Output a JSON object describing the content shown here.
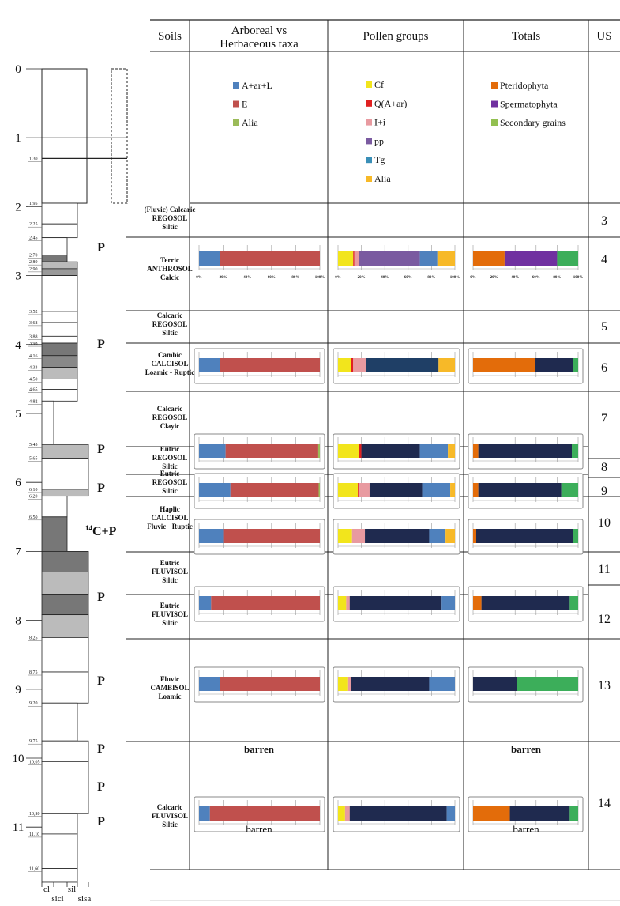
{
  "headers": {
    "soils": "Soils",
    "arboreal": [
      "Arboreal vs",
      "Herbaceous taxa"
    ],
    "pollen": "Pollen groups",
    "totals": "Totals",
    "us": "US"
  },
  "legends": {
    "arboreal": [
      {
        "label": "A+ar+L",
        "color": "#4f81bd"
      },
      {
        "label": "E",
        "color": "#c0504d"
      },
      {
        "label": "Alia",
        "color": "#9bbb59"
      }
    ],
    "pollen": [
      {
        "label": "Cf",
        "color": "#f2e51c"
      },
      {
        "label": "Q(A+ar)",
        "color": "#e02020"
      },
      {
        "label": "I+i",
        "color": "#e89aa0"
      },
      {
        "label": "pp",
        "color": "#7a5aa0"
      },
      {
        "label": "Tg",
        "color": "#3a8fb7"
      },
      {
        "label": "Alia",
        "color": "#f7b928"
      }
    ],
    "totals": [
      {
        "label": "Pteridophyta",
        "color": "#e36c0a"
      },
      {
        "label": "Spermatophyta",
        "color": "#7030a0"
      },
      {
        "label": "Secondary grains",
        "color": "#92c050"
      }
    ]
  },
  "depth_axis": {
    "major": [
      "0",
      "1",
      "2",
      "3",
      "4",
      "5",
      "6",
      "7",
      "8",
      "9",
      "10",
      "11"
    ],
    "minor": [
      "1,30",
      "1,95",
      "2,25",
      "2,45",
      "2,70",
      "2,80",
      "2,90",
      "3,52",
      "3,68",
      "3,88",
      "3,98",
      "4,16",
      "4,33",
      "4,50",
      "4,65",
      "4,82",
      "5,45",
      "5,65",
      "6,10",
      "6,20",
      "6,50",
      "8,25",
      "8,75",
      "9,20",
      "9,75",
      "10,05",
      "10,80",
      "11,10",
      "11,60"
    ],
    "texture": [
      "cl",
      "sicl",
      "sil",
      "sisa"
    ]
  },
  "sampling_marks": [
    "P",
    "P",
    "P",
    "P",
    "14C+P",
    "P",
    "P",
    "P",
    "P",
    "P"
  ],
  "soil_units": [
    {
      "us": "3",
      "soil": [
        "(Fluvic) Calcaric",
        "REGOSOL",
        "Siltic"
      ]
    },
    {
      "us": "4",
      "soil": [
        "Terric",
        "ANTHROSOL",
        "Calcic"
      ]
    },
    {
      "us": "5",
      "soil": [
        "Calcaric",
        "REGOSOL",
        "Siltic"
      ]
    },
    {
      "us": "6",
      "soil": [
        "Cambic",
        "CALCISOL",
        "Loamic - Ruptic"
      ]
    },
    {
      "us": "7",
      "soil": [
        "Calcaric",
        "REGOSOL",
        "Clayic"
      ]
    },
    {
      "us": "8",
      "soil": [
        "Eutric",
        "REGOSOL",
        "Siltic"
      ]
    },
    {
      "us": "9",
      "soil": [
        "Eutric",
        "REGOSOL",
        "Siltic"
      ]
    },
    {
      "us": "10",
      "soil": [
        "Haplic",
        "CALCISOL",
        "Fluvic - Ruptic"
      ]
    },
    {
      "us": "11",
      "soil": [
        "Eutric",
        "FLUVISOL",
        "Siltic"
      ]
    },
    {
      "us": "12",
      "soil": [
        "Eutric",
        "FLUVISOL",
        "Siltic"
      ]
    },
    {
      "us": "13",
      "soil": [
        "Fluvic",
        "CAMBISOL",
        "Loamic"
      ]
    },
    {
      "us": "14",
      "soil": [
        "Calcaric",
        "FLUVISOL",
        "Siltic"
      ]
    }
  ],
  "barren_label": "barren",
  "chart_data": {
    "type": "bar",
    "stacked": "100% horizontal",
    "axis_ticks": [
      "0%",
      "20%",
      "40%",
      "60%",
      "80%",
      "100%"
    ],
    "series_colors": {
      "arboreal": [
        "#4f81bd",
        "#c0504d",
        "#9bbb59"
      ],
      "pollen": [
        "#f2e51c",
        "#e02020",
        "#e89aa0",
        "#7a5aa0",
        "#3a8fb7",
        "#f7b928"
      ],
      "totals": [
        "#e36c0a",
        "#7030a0",
        "#3cae5a"
      ]
    },
    "rows": [
      {
        "us": "4",
        "arboreal": [
          {
            "label": "A+ar+L",
            "value": 17,
            "color": "#4f81bd"
          },
          {
            "label": "E",
            "value": 83,
            "color": "#c0504d"
          }
        ],
        "pollen": [
          {
            "label": "Cf",
            "value": 13,
            "color": "#f2e51c"
          },
          {
            "label": "Q(A+ar)",
            "value": 1,
            "color": "#e02020"
          },
          {
            "label": "I+i",
            "value": 4,
            "color": "#e89aa0"
          },
          {
            "label": "pp",
            "value": 52,
            "color": "#7a5aa0"
          },
          {
            "label": "Tg",
            "value": 15,
            "color": "#4f81bd"
          },
          {
            "label": "Alia",
            "value": 15,
            "color": "#f7b928"
          }
        ],
        "totals": [
          {
            "label": "Pteridophyta",
            "value": 30,
            "color": "#e36c0a"
          },
          {
            "label": "Spermatophyta",
            "value": 50,
            "color": "#7030a0"
          },
          {
            "label": "Secondary grains",
            "value": 20,
            "color": "#3cae5a"
          }
        ]
      },
      {
        "us": "6",
        "arboreal": [
          {
            "label": "A+ar+L",
            "value": 17,
            "color": "#4f81bd"
          },
          {
            "label": "E",
            "value": 83,
            "color": "#c0504d"
          }
        ],
        "pollen": [
          {
            "label": "Cf",
            "value": 11,
            "color": "#f2e51c"
          },
          {
            "label": "Q(A+ar)",
            "value": 2,
            "color": "#e02020"
          },
          {
            "label": "I+i",
            "value": 11,
            "color": "#e89aa0"
          },
          {
            "label": "pp",
            "value": 62,
            "color": "#1f3f66"
          },
          {
            "label": "Alia",
            "value": 14,
            "color": "#f7b928"
          }
        ],
        "totals": [
          {
            "label": "Pteridophyta",
            "value": 59,
            "color": "#e36c0a"
          },
          {
            "label": "Spermatophyta",
            "value": 36,
            "color": "#1f2a4f"
          },
          {
            "label": "Secondary grains",
            "value": 5,
            "color": "#3cae5a"
          }
        ]
      },
      {
        "us": "8",
        "arboreal": [
          {
            "label": "A+ar+L",
            "value": 22,
            "color": "#4f81bd"
          },
          {
            "label": "E",
            "value": 76,
            "color": "#c0504d"
          },
          {
            "label": "Alia",
            "value": 2,
            "color": "#9bbb59"
          }
        ],
        "pollen": [
          {
            "label": "Cf",
            "value": 18,
            "color": "#f2e51c"
          },
          {
            "label": "Q(A+ar)",
            "value": 2,
            "color": "#e02020"
          },
          {
            "label": "pp",
            "value": 50,
            "color": "#1f2a4f"
          },
          {
            "label": "Tg",
            "value": 24,
            "color": "#4f81bd"
          },
          {
            "label": "Alia",
            "value": 6,
            "color": "#f7b928"
          }
        ],
        "totals": [
          {
            "label": "Pteridophyta",
            "value": 5,
            "color": "#e36c0a"
          },
          {
            "label": "Spermatophyta",
            "value": 89,
            "color": "#1f2a4f"
          },
          {
            "label": "Secondary grains",
            "value": 6,
            "color": "#3cae5a"
          }
        ]
      },
      {
        "us": "9",
        "arboreal": [
          {
            "label": "A+ar+L",
            "value": 26,
            "color": "#4f81bd"
          },
          {
            "label": "E",
            "value": 73,
            "color": "#c0504d"
          },
          {
            "label": "Alia",
            "value": 1,
            "color": "#9bbb59"
          }
        ],
        "pollen": [
          {
            "label": "Cf",
            "value": 17,
            "color": "#f2e51c"
          },
          {
            "label": "Q(A+ar)",
            "value": 1,
            "color": "#e02020"
          },
          {
            "label": "I+i",
            "value": 9,
            "color": "#e89aa0"
          },
          {
            "label": "pp",
            "value": 45,
            "color": "#1f2a4f"
          },
          {
            "label": "Tg",
            "value": 24,
            "color": "#4f81bd"
          },
          {
            "label": "Alia",
            "value": 4,
            "color": "#f7b928"
          }
        ],
        "totals": [
          {
            "label": "Pteridophyta",
            "value": 5,
            "color": "#e36c0a"
          },
          {
            "label": "Spermatophyta",
            "value": 79,
            "color": "#1f2a4f"
          },
          {
            "label": "Secondary grains",
            "value": 16,
            "color": "#3cae5a"
          }
        ]
      },
      {
        "us": "10",
        "arboreal": [
          {
            "label": "A+ar+L",
            "value": 20,
            "color": "#4f81bd"
          },
          {
            "label": "E",
            "value": 80,
            "color": "#c0504d"
          }
        ],
        "pollen": [
          {
            "label": "Cf",
            "value": 12,
            "color": "#f2e51c"
          },
          {
            "label": "I+i",
            "value": 11,
            "color": "#e89aa0"
          },
          {
            "label": "pp",
            "value": 55,
            "color": "#1f2a4f"
          },
          {
            "label": "Tg",
            "value": 14,
            "color": "#4f81bd"
          },
          {
            "label": "Alia",
            "value": 8,
            "color": "#f7b928"
          }
        ],
        "totals": [
          {
            "label": "Pteridophyta",
            "value": 3,
            "color": "#e36c0a"
          },
          {
            "label": "Spermatophyta",
            "value": 92,
            "color": "#1f2a4f"
          },
          {
            "label": "Secondary grains",
            "value": 5,
            "color": "#3cae5a"
          }
        ]
      },
      {
        "us": "12",
        "arboreal": [
          {
            "label": "A+ar+L",
            "value": 10,
            "color": "#4f81bd"
          },
          {
            "label": "E",
            "value": 90,
            "color": "#c0504d"
          }
        ],
        "pollen": [
          {
            "label": "Cf",
            "value": 7,
            "color": "#f2e51c"
          },
          {
            "label": "I+i",
            "value": 3,
            "color": "#e89aa0"
          },
          {
            "label": "pp",
            "value": 78,
            "color": "#1f2a4f"
          },
          {
            "label": "Tg",
            "value": 12,
            "color": "#4f81bd"
          }
        ],
        "totals": [
          {
            "label": "Pteridophyta",
            "value": 8,
            "color": "#e36c0a"
          },
          {
            "label": "Spermatophyta",
            "value": 84,
            "color": "#1f2a4f"
          },
          {
            "label": "Secondary grains",
            "value": 8,
            "color": "#3cae5a"
          }
        ]
      },
      {
        "us": "13",
        "arboreal": [
          {
            "label": "A+ar+L",
            "value": 17,
            "color": "#4f81bd"
          },
          {
            "label": "E",
            "value": 83,
            "color": "#c0504d"
          }
        ],
        "pollen": [
          {
            "label": "Cf",
            "value": 8,
            "color": "#f2e51c"
          },
          {
            "label": "I+i",
            "value": 3,
            "color": "#e89aa0"
          },
          {
            "label": "pp",
            "value": 67,
            "color": "#1f2a4f"
          },
          {
            "label": "Tg",
            "value": 22,
            "color": "#4f81bd"
          }
        ],
        "totals": [
          {
            "label": "Spermatophyta",
            "value": 42,
            "color": "#1f2a4f"
          },
          {
            "label": "Secondary grains",
            "value": 58,
            "color": "#3cae5a"
          }
        ]
      },
      {
        "us": "14",
        "arboreal": [
          {
            "label": "A+ar+L",
            "value": 9,
            "color": "#4f81bd"
          },
          {
            "label": "E",
            "value": 91,
            "color": "#c0504d"
          }
        ],
        "pollen": [
          {
            "label": "Cf",
            "value": 6,
            "color": "#f2e51c"
          },
          {
            "label": "I+i",
            "value": 4,
            "color": "#e89aa0"
          },
          {
            "label": "pp",
            "value": 83,
            "color": "#1f2a4f"
          },
          {
            "label": "Tg",
            "value": 7,
            "color": "#4f81bd"
          }
        ],
        "totals": [
          {
            "label": "Pteridophyta",
            "value": 35,
            "color": "#e36c0a"
          },
          {
            "label": "Spermatophyta",
            "value": 57,
            "color": "#1f2a4f"
          },
          {
            "label": "Secondary grains",
            "value": 8,
            "color": "#3cae5a"
          }
        ]
      }
    ]
  }
}
